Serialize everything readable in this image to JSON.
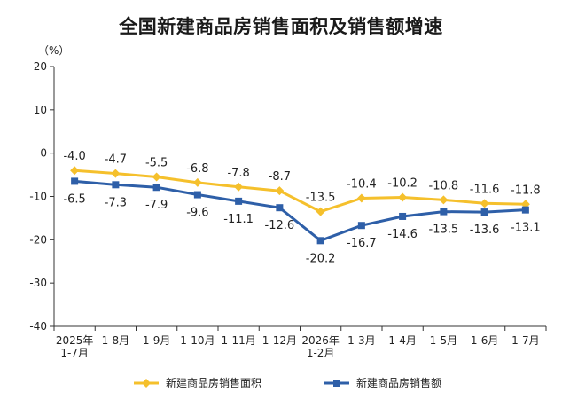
{
  "chart_data": {
    "type": "line",
    "title": "全国新建商品房销售面积及销售额增速",
    "unit": "（%）",
    "categories": [
      [
        "2025年",
        "1-7月"
      ],
      [
        "1-8月"
      ],
      [
        "1-9月"
      ],
      [
        "1-10月"
      ],
      [
        "1-11月"
      ],
      [
        "1-12月"
      ],
      [
        "2026年",
        "1-2月"
      ],
      [
        "1-3月"
      ],
      [
        "1-4月"
      ],
      [
        "1-5月"
      ],
      [
        "1-6月"
      ],
      [
        "1-7月"
      ]
    ],
    "series": [
      {
        "name": "新建商品房销售面积",
        "color": "#F5C02C",
        "values": [
          -4.0,
          -4.7,
          -5.5,
          -6.8,
          -7.8,
          -8.7,
          -13.5,
          -10.4,
          -10.2,
          -10.8,
          -11.6,
          -11.8
        ],
        "labels": [
          "-4.0",
          "-4.7",
          "-5.5",
          "-6.8",
          "-7.8",
          "-8.7",
          "-13.5",
          "-10.4",
          "-10.2",
          "-10.8",
          "-11.6",
          "-11.8"
        ]
      },
      {
        "name": "新建商品房销售额",
        "color": "#2E5FA8",
        "values": [
          -6.5,
          -7.3,
          -7.9,
          -9.6,
          -11.1,
          -12.6,
          -20.2,
          -16.7,
          -14.6,
          -13.5,
          -13.6,
          -13.1
        ],
        "labels": [
          "-6.5",
          "-7.3",
          "-7.9",
          "-9.6",
          "-11.1",
          "-12.6",
          "-20.2",
          "-16.7",
          "-14.6",
          "-13.5",
          "-13.6",
          "-13.1"
        ]
      }
    ],
    "ylim": [
      -40,
      20
    ],
    "yticks": [
      20,
      10,
      0,
      -10,
      -20,
      -30,
      -40
    ],
    "grid": false,
    "legend_position": "bottom"
  }
}
